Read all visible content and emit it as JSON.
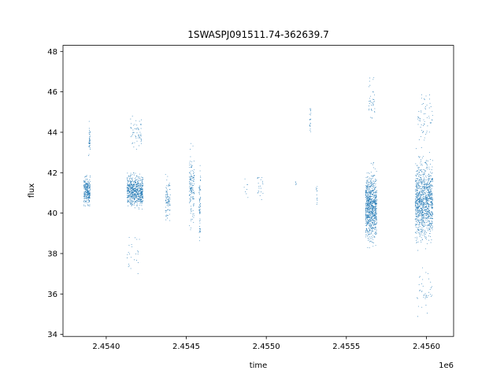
{
  "chart_data": {
    "type": "scatter",
    "title": "1SWASPJ091511.74-362639.7",
    "xlabel": "time",
    "ylabel": "flux",
    "x_offset_label": "1e6",
    "x_ticks": [
      2.454,
      2.4545,
      2.455,
      2.4555,
      2.456
    ],
    "x_tick_labels": [
      "2.4540",
      "2.4545",
      "2.4550",
      "2.4555",
      "2.4560"
    ],
    "y_ticks": [
      34,
      36,
      38,
      40,
      42,
      44,
      46,
      48
    ],
    "y_tick_labels": [
      "34",
      "36",
      "38",
      "40",
      "42",
      "44",
      "46",
      "48"
    ],
    "xlim": [
      2.45373,
      2.45617
    ],
    "ylim": [
      33.9,
      48.3
    ],
    "grid": false,
    "point_color": "#1f77b4",
    "clusters": [
      {
        "x_range": [
          2.45386,
          2.4539
        ],
        "y_center": 41.1,
        "y_spread": 0.55,
        "n": 260
      },
      {
        "x_range": [
          2.45389,
          2.4539
        ],
        "y_center": 43.6,
        "y_spread": 0.6,
        "n": 40
      },
      {
        "x_range": [
          2.45413,
          2.45423
        ],
        "y_center": 41.1,
        "y_spread": 0.6,
        "n": 650
      },
      {
        "x_range": [
          2.45415,
          2.45422
        ],
        "y_center": 44.0,
        "y_spread": 0.7,
        "n": 60
      },
      {
        "x_range": [
          2.45413,
          2.45422
        ],
        "y_center": 38.0,
        "y_spread": 0.8,
        "n": 25
      },
      {
        "x_range": [
          2.45437,
          2.4544
        ],
        "y_center": 40.7,
        "y_spread": 0.9,
        "n": 90
      },
      {
        "x_range": [
          2.45452,
          2.45455
        ],
        "y_center": 41.2,
        "y_spread": 1.3,
        "n": 150
      },
      {
        "x_range": [
          2.45458,
          2.45459
        ],
        "y_center": 40.5,
        "y_spread": 1.3,
        "n": 70
      },
      {
        "x_range": [
          2.45486,
          2.45489
        ],
        "y_center": 41.3,
        "y_spread": 0.4,
        "n": 8
      },
      {
        "x_range": [
          2.45494,
          2.45498
        ],
        "y_center": 41.5,
        "y_spread": 0.6,
        "n": 22
      },
      {
        "x_range": [
          2.45518,
          2.45519
        ],
        "y_center": 41.5,
        "y_spread": 0.2,
        "n": 4
      },
      {
        "x_range": [
          2.45527,
          2.45528
        ],
        "y_center": 44.6,
        "y_spread": 0.6,
        "n": 20
      },
      {
        "x_range": [
          2.45531,
          2.45532
        ],
        "y_center": 41.0,
        "y_spread": 0.5,
        "n": 12
      },
      {
        "x_range": [
          2.45562,
          2.45569
        ],
        "y_center": 40.3,
        "y_spread": 1.3,
        "n": 900
      },
      {
        "x_range": [
          2.45564,
          2.45568
        ],
        "y_center": 45.5,
        "y_spread": 0.9,
        "n": 40
      },
      {
        "x_range": [
          2.45593,
          2.45604
        ],
        "y_center": 40.6,
        "y_spread": 1.5,
        "n": 1100
      },
      {
        "x_range": [
          2.45594,
          2.45604
        ],
        "y_center": 44.8,
        "y_spread": 1.0,
        "n": 60
      },
      {
        "x_range": [
          2.45594,
          2.45604
        ],
        "y_center": 36.2,
        "y_spread": 0.9,
        "n": 40
      }
    ]
  }
}
